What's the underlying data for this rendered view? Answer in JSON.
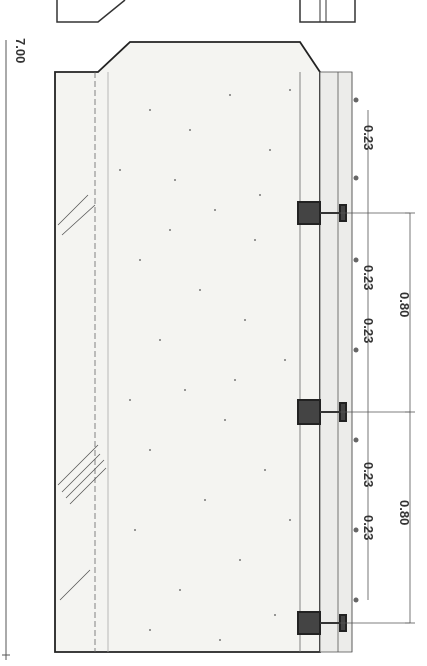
{
  "drawing": {
    "overall_dimension": "7.00",
    "segment_dimensions": [
      "0.80",
      "0.80"
    ],
    "spacing_labels": [
      "0.23",
      "0.23",
      "0.23",
      "0.23",
      "0.23"
    ]
  },
  "colors": {
    "line": "#333333",
    "concrete_fill": "#f4f4f1",
    "hatch": "#555555",
    "speckle": "#777777",
    "strip_fill": "#ececea"
  }
}
